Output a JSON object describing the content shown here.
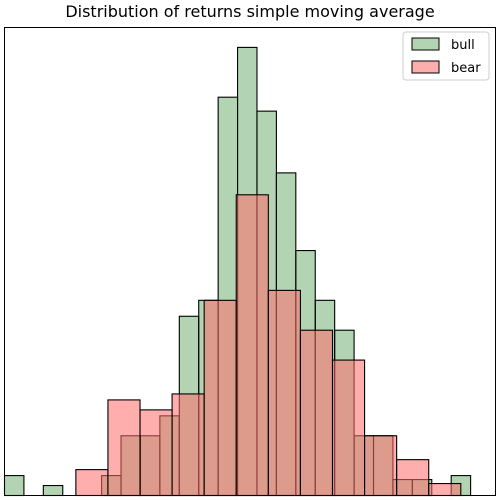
{
  "chart_data": {
    "type": "histogram",
    "title": "Distribution of returns simple moving average",
    "xlabel": "",
    "ylabel": "",
    "xticks": "none",
    "yticks": "none",
    "grid": false,
    "legend_placement": "top-right",
    "ylim": [
      0,
      23.5
    ],
    "series": [
      {
        "name": "bull",
        "color": "#2e8b2e",
        "alpha": 0.37,
        "edgecolor": "#000000",
        "bins": [
          {
            "x0": 0.0,
            "x1": 0.89,
            "value": 1
          },
          {
            "x0": 0.89,
            "x1": 1.78,
            "value": 0
          },
          {
            "x0": 1.78,
            "x1": 2.67,
            "value": 0.5
          },
          {
            "x0": 2.67,
            "x1": 3.56,
            "value": 0
          },
          {
            "x0": 3.56,
            "x1": 4.45,
            "value": 0
          },
          {
            "x0": 4.45,
            "x1": 5.34,
            "value": 1
          },
          {
            "x0": 5.34,
            "x1": 6.23,
            "value": 3
          },
          {
            "x0": 6.23,
            "x1": 7.12,
            "value": 3
          },
          {
            "x0": 7.12,
            "x1": 8.01,
            "value": 4
          },
          {
            "x0": 8.01,
            "x1": 8.9,
            "value": 9
          },
          {
            "x0": 8.9,
            "x1": 9.79,
            "value": 9.8
          },
          {
            "x0": 9.79,
            "x1": 10.68,
            "value": 20
          },
          {
            "x0": 10.68,
            "x1": 11.57,
            "value": 22.5
          },
          {
            "x0": 11.57,
            "x1": 12.46,
            "value": 19.3
          },
          {
            "x0": 12.46,
            "x1": 13.35,
            "value": 16.2
          },
          {
            "x0": 13.35,
            "x1": 14.24,
            "value": 12.3
          },
          {
            "x0": 14.24,
            "x1": 15.13,
            "value": 9.8
          },
          {
            "x0": 15.13,
            "x1": 16.02,
            "value": 8.3
          },
          {
            "x0": 16.02,
            "x1": 16.91,
            "value": 3
          },
          {
            "x0": 16.91,
            "x1": 17.8,
            "value": 3
          },
          {
            "x0": 17.8,
            "x1": 18.69,
            "value": 0.8
          },
          {
            "x0": 18.69,
            "x1": 19.58,
            "value": 0.8
          },
          {
            "x0": 19.58,
            "x1": 20.47,
            "value": 0
          },
          {
            "x0": 20.47,
            "x1": 21.36,
            "value": 1
          }
        ]
      },
      {
        "name": "bear",
        "color": "#ff6b6b",
        "alpha": 0.55,
        "edgecolor": "#000000",
        "bins": [
          {
            "x0": 3.27,
            "x1": 4.74,
            "value": 1.3
          },
          {
            "x0": 4.74,
            "x1": 6.21,
            "value": 4.8
          },
          {
            "x0": 6.21,
            "x1": 7.68,
            "value": 4.3
          },
          {
            "x0": 7.68,
            "x1": 9.15,
            "value": 5.1
          },
          {
            "x0": 9.15,
            "x1": 10.62,
            "value": 9.8
          },
          {
            "x0": 10.62,
            "x1": 12.09,
            "value": 15.1
          },
          {
            "x0": 12.09,
            "x1": 13.56,
            "value": 10.3
          },
          {
            "x0": 13.56,
            "x1": 15.03,
            "value": 8.3
          },
          {
            "x0": 15.03,
            "x1": 16.5,
            "value": 6.8
          },
          {
            "x0": 16.5,
            "x1": 17.97,
            "value": 3
          },
          {
            "x0": 17.97,
            "x1": 19.44,
            "value": 1.8
          },
          {
            "x0": 19.44,
            "x1": 20.91,
            "value": 0.6
          }
        ]
      }
    ]
  }
}
